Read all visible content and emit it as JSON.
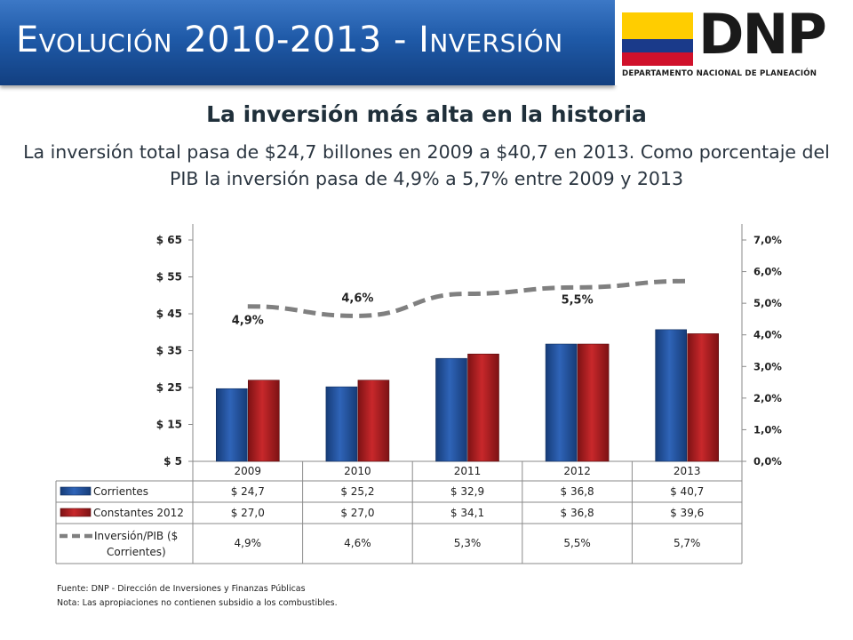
{
  "header": {
    "title_first_letter": "E",
    "title_first_rest": "volución",
    "title_middle": " 2010-2013 - ",
    "title_last_letter": "I",
    "title_last_rest": "nversión",
    "logo_text": "DNP",
    "logo_subtitle": "DEPARTAMENTO NACIONAL DE PLANEACIÓN"
  },
  "headline": "La inversión más alta en la historia",
  "subheadline": "La inversión total pasa de $24,7 billones en 2009 a $40,7 en 2013. Como porcentaje del PIB la inversión pasa de 4,9% a 5,7% entre 2009 y 2013",
  "chart_data": {
    "type": "bar",
    "categories": [
      "2009",
      "2010",
      "2011",
      "2012",
      "2013"
    ],
    "series": [
      {
        "name": "Corrientes",
        "axis": "left",
        "values": [
          24.7,
          25.2,
          32.9,
          36.8,
          40.7
        ],
        "color": "#1f4e9a",
        "labels": [
          "$ 24,7",
          "$ 25,2",
          "$ 32,9",
          "$ 36,8",
          "$ 40,7"
        ]
      },
      {
        "name": "Constantes 2012",
        "axis": "left",
        "values": [
          27.0,
          27.0,
          34.1,
          36.8,
          39.6
        ],
        "color": "#b51e22",
        "labels": [
          "$ 27,0",
          "$ 27,0",
          "$ 34,1",
          "$ 36,8",
          "$ 39,6"
        ]
      },
      {
        "name": "Inversión/PIB ($ Corrientes)",
        "name_lines": [
          "Inversión/PIB ($",
          "Corrientes)"
        ],
        "axis": "right",
        "type": "line",
        "style": "dashed",
        "values": [
          4.9,
          4.6,
          5.3,
          5.5,
          5.7
        ],
        "color": "#7f7f7f",
        "labels": [
          "4,9%",
          "4,6%",
          "5,3%",
          "5,5%",
          "5,7%"
        ]
      }
    ],
    "left_axis": {
      "min": 5,
      "max": 65,
      "ticks": [
        "$ 5",
        "$ 15",
        "$ 25",
        "$ 35",
        "$ 45",
        "$ 55",
        "$ 65"
      ]
    },
    "right_axis": {
      "min": 0,
      "max": 7,
      "ticks": [
        "0,0%",
        "1,0%",
        "2,0%",
        "3,0%",
        "4,0%",
        "5,0%",
        "6,0%",
        "7,0%"
      ]
    },
    "point_annotations": [
      {
        "index": 0,
        "label": "4,9%"
      },
      {
        "index": 1,
        "label": "4,6%"
      },
      {
        "index": 3,
        "label": "5,5%"
      }
    ],
    "legend": "data-table-below",
    "grid": false
  },
  "notes": {
    "source": "Fuente: DNP - Dirección de Inversiones y Finanzas Públicas",
    "note": "Nota: Las apropiaciones no contienen subsidio a los combustibles."
  }
}
